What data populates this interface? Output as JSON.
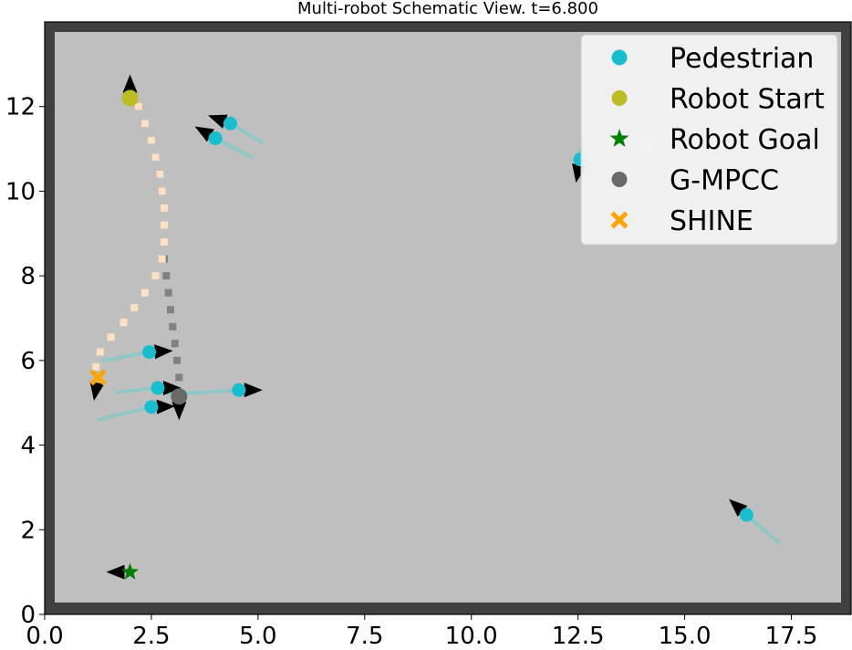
{
  "chart_data": {
    "type": "scatter",
    "title": "Multi-robot Schematic View. t=6.800",
    "xlabel": "",
    "ylabel": "",
    "xlim": [
      0.0,
      18.9
    ],
    "ylim": [
      0.0,
      14.0
    ],
    "xticks": [
      {
        "value": 0.0,
        "label": "0.0"
      },
      {
        "value": 2.5,
        "label": "2.5"
      },
      {
        "value": 5.0,
        "label": "5.0"
      },
      {
        "value": 7.5,
        "label": "7.5"
      },
      {
        "value": 10.0,
        "label": "10.0"
      },
      {
        "value": 12.5,
        "label": "12.5"
      },
      {
        "value": 15.0,
        "label": "15.0"
      },
      {
        "value": 17.5,
        "label": "17.5"
      }
    ],
    "yticks": [
      {
        "value": 0,
        "label": "0"
      },
      {
        "value": 2,
        "label": "2"
      },
      {
        "value": 4,
        "label": "4"
      },
      {
        "value": 6,
        "label": "6"
      },
      {
        "value": 8,
        "label": "8"
      },
      {
        "value": 10,
        "label": "10"
      },
      {
        "value": 12,
        "label": "12"
      }
    ],
    "grid": false,
    "legend_position": "top-right",
    "colors": {
      "border": "#404040",
      "arena": "#bfbfbf",
      "pedestrian": "#17becf",
      "pedestrian_trail": "#8fc7c7",
      "robot_start": "#bcbd22",
      "robot_goal": "#008000",
      "gmpcc": "#696969",
      "gmpcc_path": "#808080",
      "shine": "#ffa500",
      "shine_path": "#ffe0c0",
      "heading": "#000000",
      "faded_heading": "#d4d4d4",
      "faded_marker": "#c7ecee"
    },
    "legend": [
      {
        "label": "Pedestrian",
        "marker": "circle",
        "color": "#17becf"
      },
      {
        "label": "Robot Start",
        "marker": "circle",
        "color": "#bcbd22"
      },
      {
        "label": "Robot Goal",
        "marker": "star",
        "color": "#008000"
      },
      {
        "label": "G-MPCC",
        "marker": "circle",
        "color": "#696969"
      },
      {
        "label": "SHINE",
        "marker": "x",
        "color": "#ffa500"
      }
    ],
    "pedestrians": [
      {
        "x": 4.35,
        "y": 11.6,
        "heading_deg": 160,
        "trail": [
          [
            5.1,
            11.15
          ],
          [
            4.35,
            11.6
          ]
        ]
      },
      {
        "x": 4.0,
        "y": 11.25,
        "heading_deg": 150,
        "trail": [
          [
            4.85,
            10.8
          ],
          [
            4.0,
            11.25
          ]
        ]
      },
      {
        "x": 12.55,
        "y": 10.75,
        "heading_deg": -100,
        "trail": [
          [
            12.6,
            11.2
          ],
          [
            12.55,
            10.75
          ]
        ]
      },
      {
        "x": 2.45,
        "y": 6.2,
        "heading_deg": 3,
        "trail": [
          [
            1.4,
            6.0
          ],
          [
            2.45,
            6.2
          ]
        ]
      },
      {
        "x": 2.65,
        "y": 5.35,
        "heading_deg": 0,
        "trail": [
          [
            1.7,
            5.25
          ],
          [
            2.65,
            5.35
          ]
        ]
      },
      {
        "x": 4.55,
        "y": 5.3,
        "heading_deg": 0,
        "trail": [
          [
            2.9,
            5.2
          ],
          [
            4.55,
            5.3
          ]
        ]
      },
      {
        "x": 2.5,
        "y": 4.9,
        "heading_deg": 2,
        "trail": [
          [
            1.25,
            4.6
          ],
          [
            2.5,
            4.9
          ]
        ]
      },
      {
        "x": 16.45,
        "y": 2.35,
        "heading_deg": 138,
        "trail": [
          [
            17.2,
            1.7
          ],
          [
            16.45,
            2.35
          ]
        ]
      }
    ],
    "faded_pedestrian": {
      "x": 14.15,
      "y": 11.1,
      "heading_deg": 140
    },
    "robot_start": {
      "x": 2.0,
      "y": 12.2,
      "heading_deg": 90
    },
    "robot_goal": {
      "x": 2.0,
      "y": 1.0,
      "heading_deg": 180
    },
    "gmpcc": {
      "x": 3.15,
      "y": 5.15,
      "heading_deg": -90,
      "path": [
        [
          2.2,
          12.0
        ],
        [
          2.35,
          11.6
        ],
        [
          2.5,
          11.2
        ],
        [
          2.6,
          10.8
        ],
        [
          2.7,
          10.4
        ],
        [
          2.75,
          10.0
        ],
        [
          2.8,
          9.6
        ],
        [
          2.8,
          9.2
        ],
        [
          2.8,
          8.8
        ],
        [
          2.8,
          8.4
        ],
        [
          2.85,
          8.0
        ],
        [
          2.9,
          7.6
        ],
        [
          2.95,
          7.2
        ],
        [
          3.0,
          6.8
        ],
        [
          3.05,
          6.4
        ],
        [
          3.1,
          6.0
        ],
        [
          3.15,
          5.6
        ]
      ]
    },
    "shine": {
      "x": 1.25,
      "y": 5.6,
      "heading_deg": -100,
      "path": [
        [
          2.2,
          12.0
        ],
        [
          2.35,
          11.6
        ],
        [
          2.5,
          11.2
        ],
        [
          2.6,
          10.8
        ],
        [
          2.7,
          10.4
        ],
        [
          2.75,
          10.0
        ],
        [
          2.8,
          9.6
        ],
        [
          2.8,
          9.2
        ],
        [
          2.8,
          8.8
        ],
        [
          2.75,
          8.4
        ],
        [
          2.6,
          8.0
        ],
        [
          2.35,
          7.6
        ],
        [
          2.1,
          7.25
        ],
        [
          1.85,
          6.9
        ],
        [
          1.55,
          6.55
        ],
        [
          1.3,
          6.2
        ],
        [
          1.2,
          5.85
        ]
      ]
    }
  }
}
